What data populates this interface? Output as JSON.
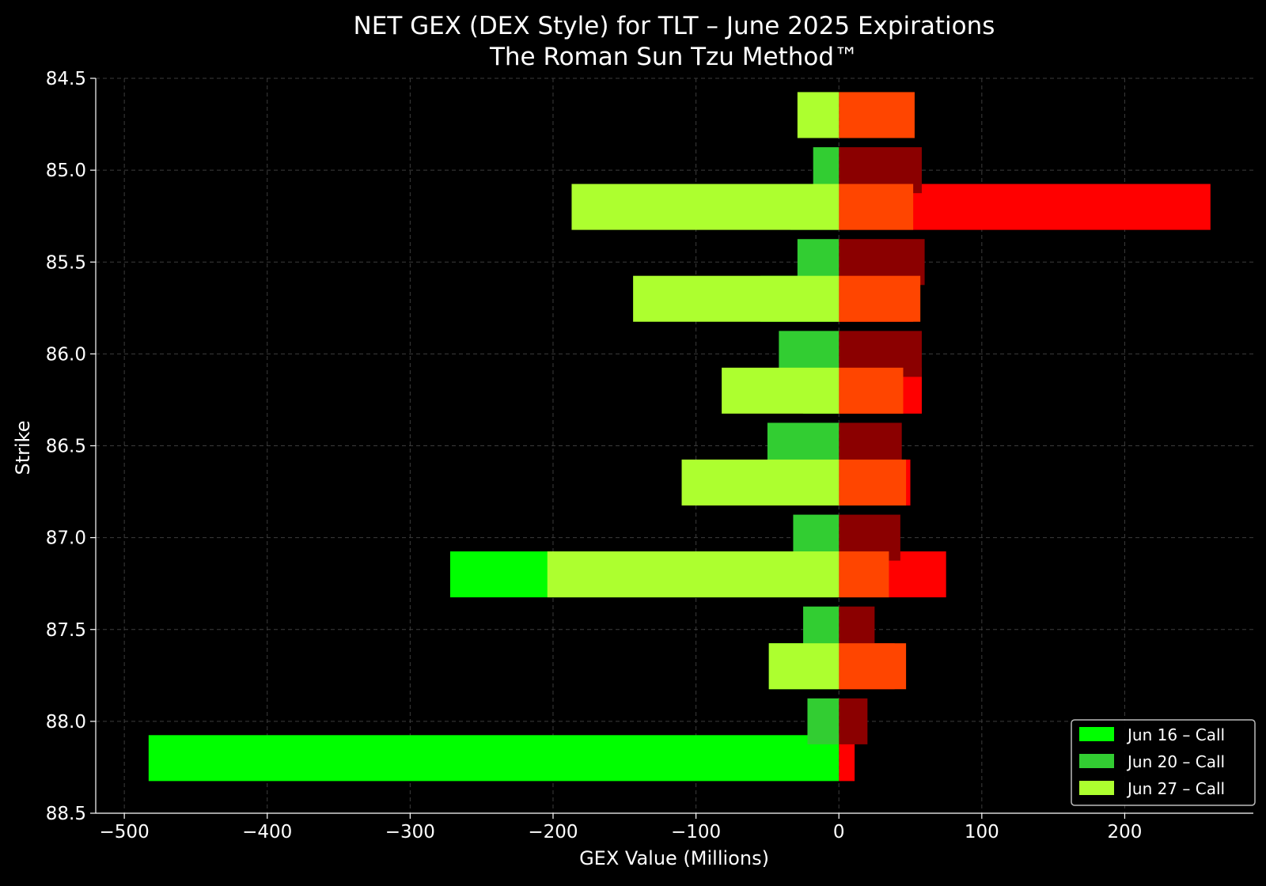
{
  "chart_data": {
    "type": "bar",
    "orientation": "horizontal",
    "title": "NET GEX (DEX Style) for TLT – June 2025 Expirations",
    "subtitle": "The Roman Sun Tzu Method™",
    "xlabel": "GEX Value (Millions)",
    "ylabel": "Strike",
    "xlim": [
      -520,
      290
    ],
    "ylim": [
      84.5,
      88.5
    ],
    "y_inverted": true,
    "xticks": [
      -500,
      -400,
      -300,
      -200,
      -100,
      0,
      100,
      200
    ],
    "xtick_labels": [
      "−500",
      "−400",
      "−300",
      "−200",
      "−100",
      "0",
      "100",
      "200"
    ],
    "yticks": [
      84.5,
      85.0,
      85.5,
      86.0,
      86.5,
      87.0,
      87.5,
      88.0,
      88.5
    ],
    "ytick_labels": [
      "84.5",
      "85.0",
      "85.5",
      "86.0",
      "86.5",
      "87.0",
      "87.5",
      "88.0",
      "88.5"
    ],
    "grid": true,
    "legend_position": "bottom-right",
    "bar_height": 0.25,
    "colors": {
      "background": "#000000",
      "grid": "#3c3c3c",
      "jun16_call": "#00ff00",
      "jun20_call": "#32cd32",
      "jun27_call": "#adff2f",
      "jun16_put": "#ff0000",
      "jun20_put": "#8b0000",
      "jun27_put": "#ff4500"
    },
    "legend": [
      {
        "label": "Jun 16 – Call",
        "color": "#00ff00"
      },
      {
        "label": "Jun 20 – Call",
        "color": "#32cd32"
      },
      {
        "label": "Jun 27 – Call",
        "color": "#adff2f"
      }
    ],
    "series": [
      {
        "key": "jun16_put",
        "color": "#ff0000",
        "offset": 0.2,
        "strikes": [
          85.0,
          85.5,
          86.0,
          86.5,
          87.0,
          87.5,
          88.0
        ],
        "values": [
          260,
          52,
          58,
          50,
          75,
          39,
          11
        ]
      },
      {
        "key": "jun16_call",
        "color": "#00ff00",
        "offset": 0.2,
        "strikes": [
          85.0,
          85.5,
          86.0,
          86.5,
          87.0,
          87.5,
          88.0
        ],
        "values": [
          -34,
          -55,
          -25,
          -15,
          -272,
          -49,
          -483
        ]
      },
      {
        "key": "jun20_put",
        "color": "#8b0000",
        "offset": 0.0,
        "strikes": [
          85.0,
          85.5,
          86.0,
          86.5,
          87.0,
          87.5,
          88.0
        ],
        "values": [
          58,
          60,
          58,
          44,
          43,
          25,
          20
        ]
      },
      {
        "key": "jun20_call",
        "color": "#32cd32",
        "offset": 0.0,
        "strikes": [
          85.0,
          85.5,
          86.0,
          86.5,
          87.0,
          87.5,
          88.0
        ],
        "values": [
          -18,
          -29,
          -42,
          -50,
          -32,
          -25,
          -22
        ]
      },
      {
        "key": "jun27_put",
        "color": "#ff4500",
        "offset": -0.3,
        "strikes": [
          85.0,
          85.5,
          86.0,
          86.5,
          87.0,
          87.5,
          88.0
        ],
        "values": [
          53,
          52,
          57,
          45,
          47,
          35,
          47
        ]
      },
      {
        "key": "jun27_call",
        "color": "#adff2f",
        "offset": -0.3,
        "strikes": [
          85.0,
          85.5,
          86.0,
          86.5,
          87.0,
          87.5,
          88.0
        ],
        "values": [
          -29,
          -187,
          -144,
          -82,
          -110,
          -204,
          -49
        ]
      }
    ]
  }
}
